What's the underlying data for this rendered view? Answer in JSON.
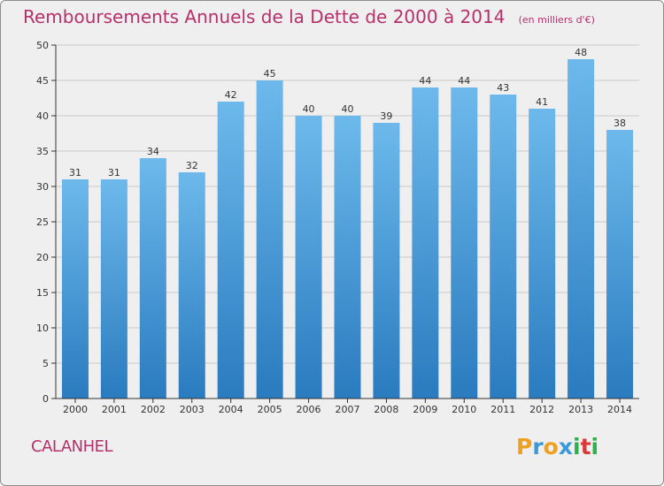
{
  "header": {
    "title": "Remboursements Annuels de la Dette de 2000 à 2014",
    "unit": "(en milliers d'€)"
  },
  "footer": {
    "commune": "CALANHEL",
    "brand": "Proxiti"
  },
  "colors": {
    "title": "#b5316b",
    "bar_top": "#6db9ec",
    "bar_bottom": "#2a7bbf",
    "grid": "#c8c8c8",
    "axis": "#333333",
    "background": "#efefef",
    "brand_letters": [
      "#f0a020",
      "#3a9ad9",
      "#f0a020",
      "#3a9ad9",
      "#2bb24c",
      "#d93a3a",
      "#2bb24c"
    ]
  },
  "chart_data": {
    "type": "bar",
    "title": "Remboursements Annuels de la Dette de 2000 à 2014",
    "subtitle": "(en milliers d'€)",
    "xlabel": "",
    "ylabel": "",
    "categories": [
      "2000",
      "2001",
      "2002",
      "2003",
      "2004",
      "2005",
      "2006",
      "2007",
      "2008",
      "2009",
      "2010",
      "2011",
      "2012",
      "2013",
      "2014"
    ],
    "values": [
      31,
      31,
      34,
      32,
      42,
      45,
      40,
      40,
      39,
      44,
      44,
      43,
      41,
      48,
      38
    ],
    "ylim": [
      0,
      50
    ],
    "yticks": [
      0,
      5,
      10,
      15,
      20,
      25,
      30,
      35,
      40,
      45,
      50
    ],
    "grid": true,
    "data_labels": true
  }
}
